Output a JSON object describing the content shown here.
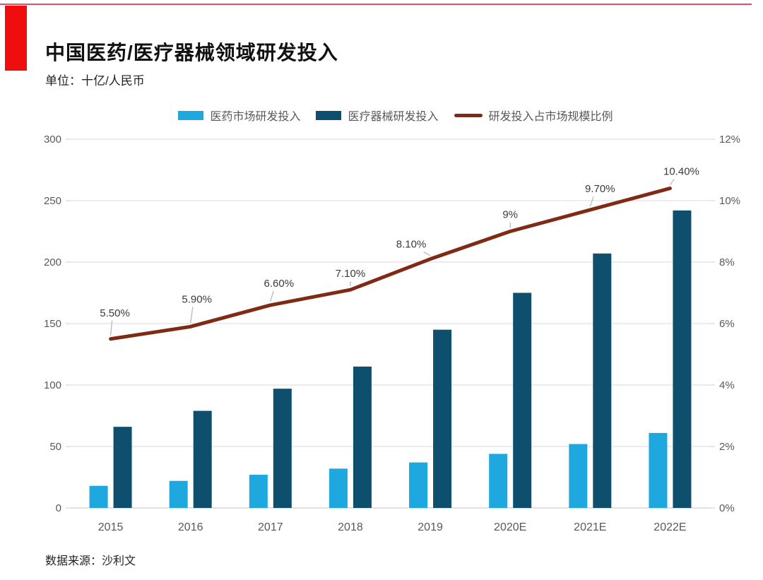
{
  "page": {
    "title": "中国医药/医疗器械领域研发投入",
    "unit_label": "单位：十亿/人民币",
    "source": "数据来源：沙利文"
  },
  "accent": {
    "brand_red": "#f00d0d",
    "top_rule_red": "#e15160"
  },
  "legend": {
    "items": [
      {
        "label": "医药市场研发投入",
        "color": "#1fa8e0",
        "swatch": "bar"
      },
      {
        "label": "医疗器械研发投入",
        "color": "#0e4f6d",
        "swatch": "bar"
      },
      {
        "label": "研发投入占市场规模比例",
        "color": "#7f2a15",
        "swatch": "line"
      }
    ]
  },
  "chart_data": {
    "type": "bar",
    "subtype": "grouped-bars-with-line-overlay",
    "title": "中国医药/医疗器械领域研发投入",
    "categories": [
      "2015",
      "2016",
      "2017",
      "2018",
      "2019",
      "2020E",
      "2021E",
      "2022E"
    ],
    "series": [
      {
        "name": "医药市场研发投入",
        "type": "bar",
        "axis": "left",
        "color": "#1fa8e0",
        "values": [
          18,
          22,
          27,
          32,
          37,
          44,
          52,
          61
        ]
      },
      {
        "name": "医疗器械研发投入",
        "type": "bar",
        "axis": "left",
        "color": "#0e4f6d",
        "values": [
          66,
          79,
          97,
          115,
          145,
          175,
          207,
          242
        ]
      },
      {
        "name": "研发投入占市场规模比例",
        "type": "line",
        "axis": "right",
        "color": "#7f2a15",
        "values": [
          5.5,
          5.9,
          6.6,
          7.1,
          8.1,
          9.0,
          9.7,
          10.4
        ],
        "point_labels": [
          "5.50%",
          "5.90%",
          "6.60%",
          "7.10%",
          "8.10%",
          "9%",
          "9.70%",
          "10.40%"
        ]
      }
    ],
    "left_axis": {
      "min": 0,
      "max": 300,
      "step": 50,
      "ticks": [
        "0",
        "50",
        "100",
        "150",
        "200",
        "250",
        "300"
      ]
    },
    "right_axis": {
      "min": 0,
      "max": 12,
      "step": 2,
      "ticks": [
        "0%",
        "2%",
        "4%",
        "6%",
        "8%",
        "10%",
        "12%"
      ]
    },
    "grid": true,
    "legend_position": "top",
    "xlabel": "",
    "ylabel_left": "十亿/人民币",
    "ylabel_right": "%"
  }
}
